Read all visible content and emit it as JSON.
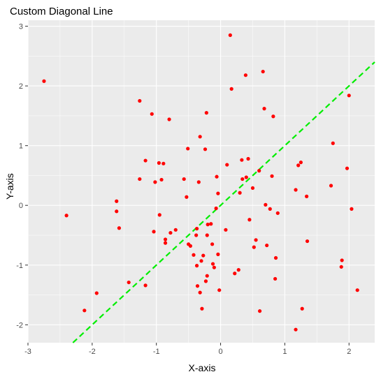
{
  "chart_data": {
    "type": "scatter",
    "title": "Custom Diagonal Line",
    "xlabel": "X-axis",
    "ylabel": "Y-axis",
    "xlim": [
      -3,
      2.4
    ],
    "ylim": [
      -2.3,
      3.1
    ],
    "xticks": [
      -3,
      -2,
      -1,
      0,
      1,
      2
    ],
    "yticks": [
      -2,
      -1,
      0,
      1,
      2,
      3
    ],
    "grid": true,
    "point_color": "#ff0000",
    "panel_color": "#ebebeb",
    "grid_color": "#ffffff",
    "reference_line": {
      "type": "diagonal",
      "intercept": 0,
      "slope": 1,
      "color": "#00ee00",
      "dash": "dashed"
    },
    "points": [
      [
        -2.75,
        2.08
      ],
      [
        -2.4,
        -0.17
      ],
      [
        -2.12,
        -1.76
      ],
      [
        -1.93,
        -1.47
      ],
      [
        -1.62,
        0.07
      ],
      [
        -1.62,
        -0.1
      ],
      [
        -1.58,
        -0.38
      ],
      [
        -1.43,
        -1.29
      ],
      [
        -1.26,
        1.75
      ],
      [
        -1.26,
        0.44
      ],
      [
        -1.17,
        0.75
      ],
      [
        -1.17,
        -1.34
      ],
      [
        -1.07,
        1.53
      ],
      [
        -1.04,
        -0.44
      ],
      [
        -1.02,
        0.39
      ],
      [
        -0.96,
        0.71
      ],
      [
        -0.95,
        -0.16
      ],
      [
        -0.92,
        0.43
      ],
      [
        -0.89,
        0.7
      ],
      [
        -0.86,
        -0.57
      ],
      [
        -0.86,
        -0.63
      ],
      [
        -0.8,
        1.44
      ],
      [
        -0.78,
        -0.46
      ],
      [
        -0.7,
        -0.41
      ],
      [
        -0.57,
        0.44
      ],
      [
        -0.53,
        0.14
      ],
      [
        -0.51,
        0.95
      ],
      [
        -0.5,
        -0.65
      ],
      [
        -0.47,
        -0.68
      ],
      [
        -0.42,
        -0.83
      ],
      [
        -0.38,
        -0.5
      ],
      [
        -0.37,
        -0.39
      ],
      [
        -0.37,
        -1.01
      ],
      [
        -0.36,
        -1.35
      ],
      [
        -0.34,
        0.39
      ],
      [
        -0.32,
        -1.46
      ],
      [
        -0.32,
        1.15
      ],
      [
        -0.3,
        -0.93
      ],
      [
        -0.29,
        -1.73
      ],
      [
        -0.27,
        -0.84
      ],
      [
        -0.24,
        0.94
      ],
      [
        -0.23,
        -1.27
      ],
      [
        -0.22,
        1.55
      ],
      [
        -0.21,
        -1.18
      ],
      [
        -0.21,
        -0.5
      ],
      [
        -0.2,
        -0.32
      ],
      [
        -0.15,
        -0.31
      ],
      [
        -0.13,
        -0.65
      ],
      [
        -0.12,
        -0.98
      ],
      [
        -0.1,
        -1.04
      ],
      [
        -0.07,
        -0.05
      ],
      [
        -0.06,
        0.48
      ],
      [
        -0.04,
        0.2
      ],
      [
        -0.04,
        -0.82
      ],
      [
        -0.02,
        -1.42
      ],
      [
        0.08,
        -0.41
      ],
      [
        0.1,
        0.68
      ],
      [
        0.15,
        2.85
      ],
      [
        0.17,
        1.95
      ],
      [
        0.22,
        -1.14
      ],
      [
        0.28,
        -1.08
      ],
      [
        0.3,
        0.21
      ],
      [
        0.33,
        0.76
      ],
      [
        0.34,
        0.44
      ],
      [
        0.39,
        2.18
      ],
      [
        0.4,
        0.47
      ],
      [
        0.43,
        0.78
      ],
      [
        0.45,
        -0.24
      ],
      [
        0.5,
        0.29
      ],
      [
        0.52,
        -0.7
      ],
      [
        0.55,
        -0.58
      ],
      [
        0.6,
        0.58
      ],
      [
        0.61,
        -1.77
      ],
      [
        0.66,
        2.24
      ],
      [
        0.68,
        1.62
      ],
      [
        0.7,
        0.01
      ],
      [
        0.72,
        -0.67
      ],
      [
        0.77,
        -0.06
      ],
      [
        0.8,
        0.49
      ],
      [
        0.82,
        1.49
      ],
      [
        0.85,
        -1.23
      ],
      [
        0.86,
        -0.88
      ],
      [
        0.89,
        -0.13
      ],
      [
        1.17,
        -2.08
      ],
      [
        1.17,
        0.26
      ],
      [
        1.21,
        0.67
      ],
      [
        1.25,
        0.72
      ],
      [
        1.27,
        -1.73
      ],
      [
        1.34,
        0.15
      ],
      [
        1.35,
        -0.6
      ],
      [
        1.72,
        0.33
      ],
      [
        1.75,
        1.04
      ],
      [
        1.88,
        -1.03
      ],
      [
        1.89,
        -0.92
      ],
      [
        1.97,
        0.62
      ],
      [
        2.0,
        1.84
      ],
      [
        2.04,
        -0.06
      ],
      [
        2.13,
        -1.42
      ]
    ]
  }
}
